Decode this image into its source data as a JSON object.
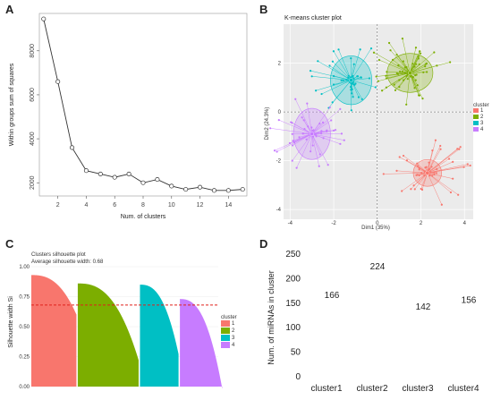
{
  "panels": {
    "a": "A",
    "b": "B",
    "c": "C",
    "d": "D"
  },
  "colors": {
    "c1": "#f8766d",
    "c2": "#7cae00",
    "c3": "#00bfc4",
    "c4": "#c77cff",
    "ref": "#e0201b"
  },
  "chart_data": [
    {
      "id": "A",
      "type": "line",
      "xlabel": "Num. of clusters",
      "ylabel": "Within groups sum of squares",
      "x": [
        1,
        2,
        3,
        4,
        5,
        6,
        7,
        8,
        9,
        10,
        11,
        12,
        13,
        14,
        15
      ],
      "y": [
        9450,
        6600,
        3600,
        2550,
        2400,
        2250,
        2400,
        2000,
        2150,
        1850,
        1700,
        1800,
        1650,
        1650,
        1700
      ],
      "xticks": [
        2,
        4,
        6,
        8,
        10,
        12,
        14
      ],
      "yticks": [
        2000,
        4000,
        6000,
        8000
      ],
      "xlim": [
        0.7,
        15.3
      ],
      "ylim": [
        1400,
        9700
      ]
    },
    {
      "id": "B",
      "type": "scatter",
      "title": "K-means cluster plot",
      "xlabel": "Dim1 (35%)",
      "ylabel": "Dim2 (24.3%)",
      "xticks": [
        -4,
        -2,
        0,
        2,
        4
      ],
      "yticks": [
        -4,
        -2,
        0,
        2
      ],
      "xlim": [
        -4.3,
        4.4
      ],
      "ylim": [
        -4.4,
        3.6
      ],
      "legend_title": "cluster",
      "series": [
        {
          "name": "1",
          "center": [
            2.3,
            -2.5
          ],
          "ellipse": [
            0.65,
            0.55
          ]
        },
        {
          "name": "2",
          "center": [
            1.5,
            1.6
          ],
          "ellipse": [
            1.05,
            0.8
          ]
        },
        {
          "name": "3",
          "center": [
            -1.2,
            1.3
          ],
          "ellipse": [
            0.95,
            1.0
          ]
        },
        {
          "name": "4",
          "center": [
            -3.0,
            -0.9
          ],
          "ellipse": [
            0.85,
            1.05
          ]
        }
      ]
    },
    {
      "id": "C",
      "type": "bar",
      "title": "Clusters silhouette plot",
      "subtitle": "Average silhouette width: 0.68",
      "ylabel": "Silhouette width Si",
      "yticks": [
        0.0,
        0.25,
        0.5,
        0.75,
        1.0
      ],
      "ylim": [
        0,
        1
      ],
      "average": 0.68,
      "legend_title": "cluster",
      "series": [
        {
          "name": "1",
          "count": 166,
          "max": 0.93,
          "min": 0.6
        },
        {
          "name": "2",
          "count": 224,
          "max": 0.86,
          "min": 0.22
        },
        {
          "name": "3",
          "count": 142,
          "max": 0.85,
          "min": 0.27
        },
        {
          "name": "4",
          "count": 156,
          "max": 0.73,
          "min": -0.02
        }
      ]
    },
    {
      "id": "D",
      "type": "bar",
      "ylabel": "Num. of miRNAs in cluster",
      "categories": [
        "cluster1",
        "cluster2",
        "cluster3",
        "cluster4"
      ],
      "values": [
        166,
        224,
        142,
        156
      ],
      "yticks": [
        0,
        50,
        100,
        150,
        200,
        250
      ],
      "ylim": [
        0,
        250
      ]
    }
  ]
}
